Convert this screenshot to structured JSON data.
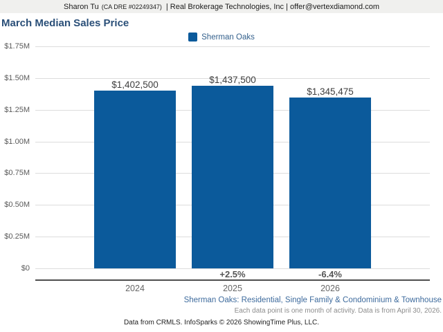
{
  "header": {
    "agent": "Sharon Tu",
    "license": "(CA DRE #02249347)",
    "brokerage": "| Real Brokerage Technologies, Inc | offer@vertexdiamond.com"
  },
  "title": "March Median Sales Price",
  "legend": {
    "label": "Sherman Oaks"
  },
  "chart_data": {
    "type": "bar",
    "title": "March Median Sales Price",
    "series_name": "Sherman Oaks",
    "categories": [
      "2024",
      "2025",
      "2026"
    ],
    "values": [
      1402500,
      1437500,
      1345475
    ],
    "value_labels": [
      "$1,402,500",
      "$1,437,500",
      "$1,345,475"
    ],
    "pct_change_labels": [
      "",
      "+2.5%",
      "-6.4%"
    ],
    "y_ticks": [
      "$1.75M",
      "$1.50M",
      "$1.25M",
      "$1.00M",
      "$0.75M",
      "$0.50M",
      "$0.25M",
      "$0"
    ],
    "ylim": [
      0,
      1750000
    ],
    "xlabel": "",
    "ylabel": "",
    "grid": true,
    "legend_position": "top-center",
    "bar_color": "#0b5a9b"
  },
  "footer": {
    "segment_line": "Sherman Oaks: Residential, Single Family & Condominium & Townhouse",
    "activity_line": "Each data point is one month of activity. Data is from April 30, 2026.",
    "attribution_line": "Data from CRMLS. InfoSparks © 2026 ShowingTime Plus, LLC."
  }
}
